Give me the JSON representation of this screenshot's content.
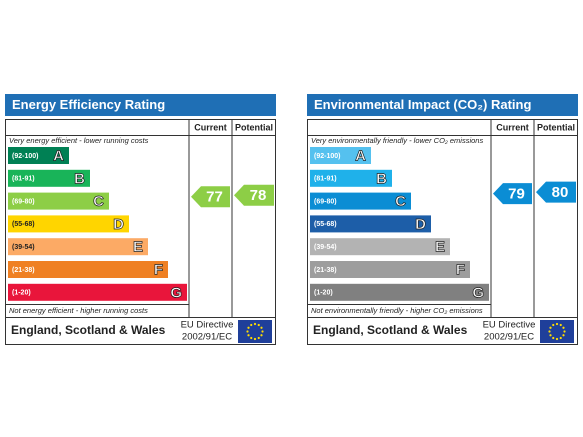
{
  "panels": [
    {
      "title": "Energy Efficiency Rating",
      "columns": [
        "Current",
        "Potential"
      ],
      "top_note": "Very energy efficient - lower running costs",
      "bottom_note": "Not energy efficient - higher running costs",
      "bands": [
        {
          "range": "(92-100)",
          "letter": "A",
          "color": "#008054"
        },
        {
          "range": "(81-91)",
          "letter": "B",
          "color": "#19b459"
        },
        {
          "range": "(69-80)",
          "letter": "C",
          "color": "#8dce46"
        },
        {
          "range": "(55-68)",
          "letter": "D",
          "color": "#ffd500"
        },
        {
          "range": "(39-54)",
          "letter": "E",
          "color": "#fcaa65"
        },
        {
          "range": "(21-38)",
          "letter": "F",
          "color": "#ef8023"
        },
        {
          "range": "(1-20)",
          "letter": "G",
          "color": "#e9153b"
        }
      ],
      "current": 77,
      "potential": 78,
      "current_band": 2,
      "potential_band": 2,
      "region": "England, Scotland & Wales",
      "directive": [
        "EU Directive",
        "2002/91/EC"
      ]
    },
    {
      "title": "Environmental Impact (CO₂) Rating",
      "columns": [
        "Current",
        "Potential"
      ],
      "top_note": "Very environmentally friendly - lower CO₂ emissions",
      "bottom_note": "Not environmentally friendly - higher CO₂ emissions",
      "bands": [
        {
          "range": "(92-100)",
          "letter": "A",
          "color": "#55c1ef"
        },
        {
          "range": "(81-91)",
          "letter": "B",
          "color": "#1fb1ea"
        },
        {
          "range": "(69-80)",
          "letter": "C",
          "color": "#0b8dd4"
        },
        {
          "range": "(55-68)",
          "letter": "D",
          "color": "#1d5ea8"
        },
        {
          "range": "(39-54)",
          "letter": "E",
          "color": "#b3b3b3"
        },
        {
          "range": "(21-38)",
          "letter": "F",
          "color": "#9d9d9d"
        },
        {
          "range": "(1-20)",
          "letter": "G",
          "color": "#808080"
        }
      ],
      "current": 79,
      "potential": 80,
      "current_band": 2,
      "potential_band": 2,
      "region": "England, Scotland & Wales",
      "directive": [
        "EU Directive",
        "2002/91/EC"
      ]
    }
  ]
}
